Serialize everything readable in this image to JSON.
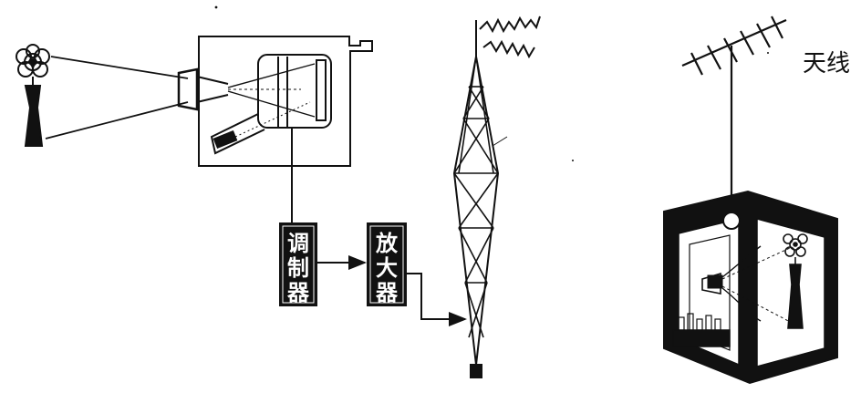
{
  "labels": {
    "antenna": "天线",
    "modulator": [
      "调",
      "制",
      "器"
    ],
    "amplifier": [
      "放",
      "大",
      "器"
    ]
  },
  "colors": {
    "ink": "#111111",
    "paper": "#ffffff"
  }
}
